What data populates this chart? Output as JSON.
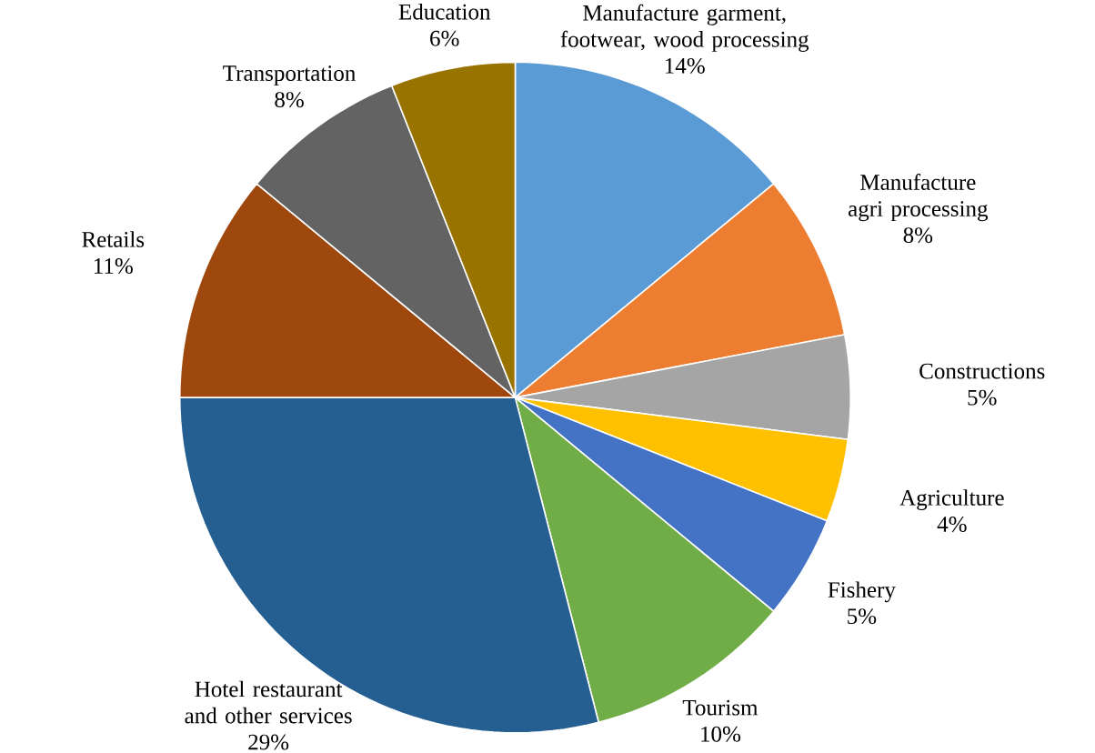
{
  "chart_data": {
    "type": "pie",
    "categories": [
      "Manufacture garment, footwear, wood processing",
      "Manufacture agri processing",
      "Constructions",
      "Agriculture",
      "Fishery",
      "Tourism",
      "Hotel restaurant and other services",
      "Retails",
      "Transportation",
      "Education"
    ],
    "values": [
      14,
      8,
      5,
      4,
      5,
      10,
      29,
      11,
      8,
      6
    ],
    "value_labels": [
      "14%",
      "8%",
      "5%",
      "4%",
      "5%",
      "10%",
      "29%",
      "11%",
      "8%",
      "6%"
    ],
    "colors": [
      "#5b9bd5",
      "#ed7d31",
      "#a5a5a5",
      "#ffc000",
      "#4472c4",
      "#70ad47",
      "#255e91",
      "#9e480e",
      "#636363",
      "#997300"
    ]
  }
}
